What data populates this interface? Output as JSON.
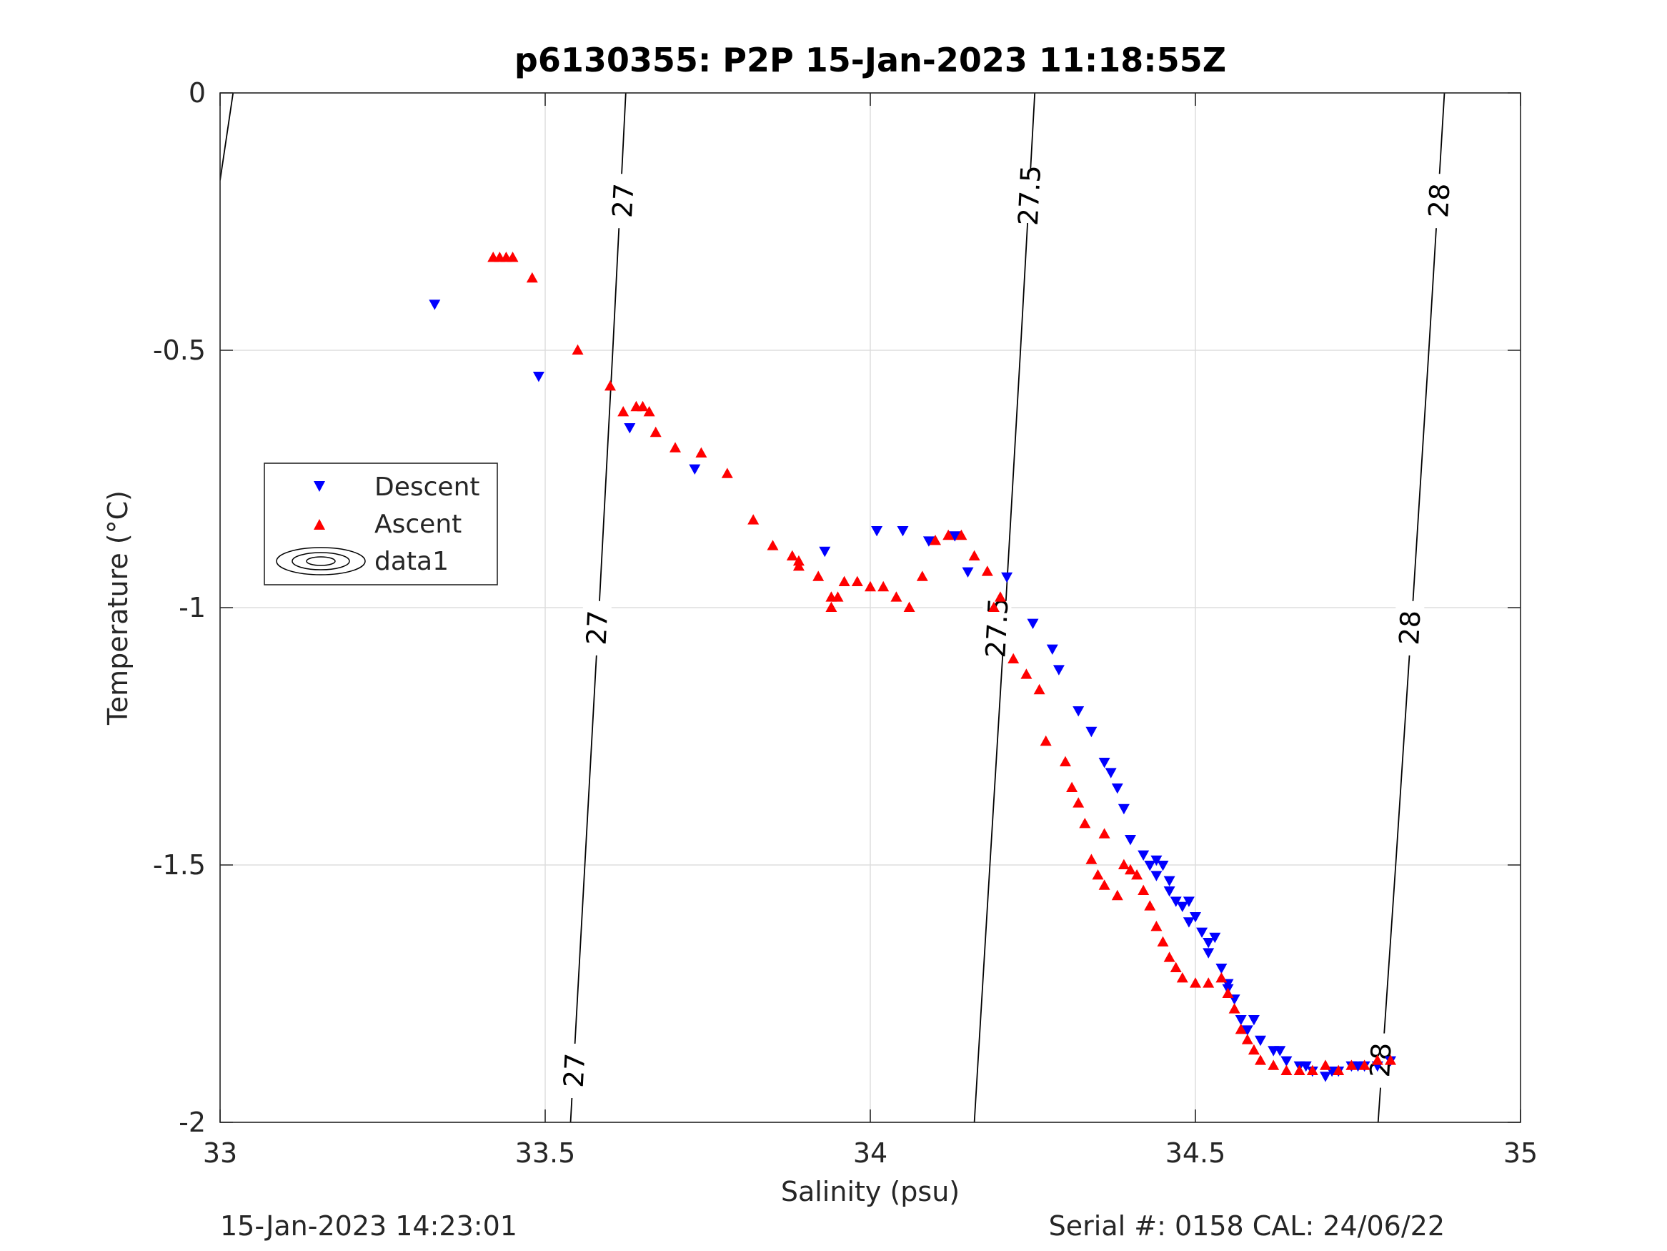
{
  "chart_data": {
    "type": "scatter",
    "title": "p6130355: P2P 15-Jan-2023 11:18:55Z",
    "xlabel": "Salinity (psu)",
    "ylabel": "Temperature (°C)",
    "xlim": [
      33,
      35
    ],
    "ylim": [
      -2,
      0
    ],
    "xticks": [
      "33",
      "33.5",
      "34",
      "34.5",
      "35"
    ],
    "yticks": [
      "-2",
      "-1.5",
      "-1",
      "-0.5",
      "0"
    ],
    "grid": true,
    "legend_position": "left-middle",
    "footer_left": "15-Jan-2023 14:23:01",
    "footer_right": "Serial #: 0158  CAL: 24/06/22",
    "legend": [
      "Descent",
      "Ascent",
      "data1"
    ],
    "colors": {
      "descent": "#0000ff",
      "ascent": "#ff0000",
      "contour": "#000000"
    },
    "contours": [
      {
        "level": "27",
        "points": [
          [
            33.624,
            0
          ],
          [
            33.604,
            -0.5
          ],
          [
            33.583,
            -1.0
          ],
          [
            33.561,
            -1.5
          ],
          [
            33.539,
            -2.0
          ]
        ],
        "labels": [
          {
            "s": 33.62,
            "t": -0.21
          },
          {
            "s": 33.58,
            "t": -1.04
          },
          {
            "s": 33.545,
            "t": -1.9
          }
        ]
      },
      {
        "level": "27.5",
        "points": [
          [
            34.253,
            0
          ],
          [
            34.231,
            -0.5
          ],
          [
            34.208,
            -1.0
          ],
          [
            34.184,
            -1.5
          ],
          [
            34.16,
            -2.0
          ]
        ],
        "labels": [
          {
            "s": 34.245,
            "t": -0.2
          },
          {
            "s": 34.195,
            "t": -1.04
          }
        ]
      },
      {
        "level": "28",
        "points": [
          [
            34.883,
            0
          ],
          [
            34.859,
            -0.5
          ],
          [
            34.834,
            -1.0
          ],
          [
            34.808,
            -1.5
          ],
          [
            34.781,
            -2.0
          ]
        ],
        "labels": [
          {
            "s": 34.875,
            "t": -0.21
          },
          {
            "s": 34.83,
            "t": -1.04
          },
          {
            "s": 34.785,
            "t": -1.88
          }
        ]
      },
      {
        "level": "26.5",
        "points": [
          [
            33.0,
            -0.17
          ],
          [
            33.02,
            0
          ]
        ],
        "labels": []
      }
    ],
    "series": [
      {
        "name": "Descent",
        "marker": "triangle-down",
        "x": [
          33.33,
          33.49,
          33.63,
          33.73,
          33.93,
          34.01,
          34.05,
          34.09,
          34.13,
          34.15,
          34.21,
          34.25,
          34.28,
          34.29,
          34.32,
          34.34,
          34.36,
          34.37,
          34.38,
          34.39,
          34.4,
          34.42,
          34.43,
          34.44,
          34.45,
          34.46,
          34.47,
          34.48,
          34.49,
          34.5,
          34.51,
          34.52,
          34.53,
          34.54,
          34.55,
          34.56,
          34.57,
          34.58,
          34.6,
          34.62,
          34.64,
          34.66,
          34.68,
          34.7,
          34.72,
          34.74,
          34.76,
          34.78,
          34.8,
          34.44,
          34.46,
          34.49,
          34.52,
          34.55,
          34.59,
          34.63,
          34.67,
          34.71,
          34.75
        ],
        "y": [
          -0.41,
          -0.55,
          -0.65,
          -0.73,
          -0.89,
          -0.85,
          -0.85,
          -0.87,
          -0.86,
          -0.93,
          -0.94,
          -1.03,
          -1.08,
          -1.12,
          -1.2,
          -1.24,
          -1.3,
          -1.32,
          -1.35,
          -1.39,
          -1.45,
          -1.48,
          -1.5,
          -1.52,
          -1.5,
          -1.53,
          -1.57,
          -1.58,
          -1.57,
          -1.6,
          -1.63,
          -1.65,
          -1.64,
          -1.7,
          -1.73,
          -1.76,
          -1.8,
          -1.82,
          -1.84,
          -1.86,
          -1.88,
          -1.89,
          -1.9,
          -1.91,
          -1.9,
          -1.89,
          -1.89,
          -1.89,
          -1.88,
          -1.49,
          -1.55,
          -1.61,
          -1.67,
          -1.74,
          -1.8,
          -1.86,
          -1.89,
          -1.9,
          -1.89
        ]
      },
      {
        "name": "Ascent",
        "marker": "triangle-up",
        "x": [
          33.42,
          33.44,
          33.45,
          33.48,
          33.55,
          33.6,
          33.62,
          33.64,
          33.65,
          33.66,
          33.67,
          33.7,
          33.74,
          33.78,
          33.82,
          33.85,
          33.88,
          33.89,
          33.92,
          33.94,
          33.95,
          33.96,
          33.98,
          34.0,
          34.02,
          34.04,
          34.06,
          34.08,
          34.1,
          34.12,
          34.14,
          34.16,
          34.18,
          34.2,
          34.22,
          34.24,
          34.26,
          34.27,
          34.3,
          34.31,
          34.32,
          34.33,
          34.34,
          34.35,
          34.36,
          34.38,
          34.39,
          34.4,
          34.41,
          34.42,
          34.43,
          34.44,
          34.45,
          34.46,
          34.47,
          34.48,
          34.5,
          34.52,
          34.54,
          34.55,
          34.56,
          34.57,
          34.58,
          34.59,
          34.6,
          34.62,
          34.64,
          34.66,
          34.68,
          34.7,
          34.72,
          34.74,
          34.76,
          34.78,
          34.8,
          33.43,
          33.89,
          33.94,
          34.19,
          34.36
        ],
        "y": [
          -0.32,
          -0.32,
          -0.32,
          -0.36,
          -0.5,
          -0.57,
          -0.62,
          -0.61,
          -0.61,
          -0.62,
          -0.66,
          -0.69,
          -0.7,
          -0.74,
          -0.83,
          -0.88,
          -0.9,
          -0.92,
          -0.94,
          -1.0,
          -0.98,
          -0.95,
          -0.95,
          -0.96,
          -0.96,
          -0.98,
          -1.0,
          -0.94,
          -0.87,
          -0.86,
          -0.86,
          -0.9,
          -0.93,
          -0.98,
          -1.1,
          -1.13,
          -1.16,
          -1.26,
          -1.3,
          -1.35,
          -1.38,
          -1.42,
          -1.49,
          -1.52,
          -1.54,
          -1.56,
          -1.5,
          -1.51,
          -1.52,
          -1.55,
          -1.58,
          -1.62,
          -1.65,
          -1.68,
          -1.7,
          -1.72,
          -1.73,
          -1.73,
          -1.72,
          -1.75,
          -1.78,
          -1.82,
          -1.84,
          -1.86,
          -1.88,
          -1.89,
          -1.9,
          -1.9,
          -1.9,
          -1.89,
          -1.9,
          -1.89,
          -1.89,
          -1.88,
          -1.88,
          -0.32,
          -0.91,
          -0.98,
          -1.0,
          -1.44
        ]
      }
    ]
  }
}
